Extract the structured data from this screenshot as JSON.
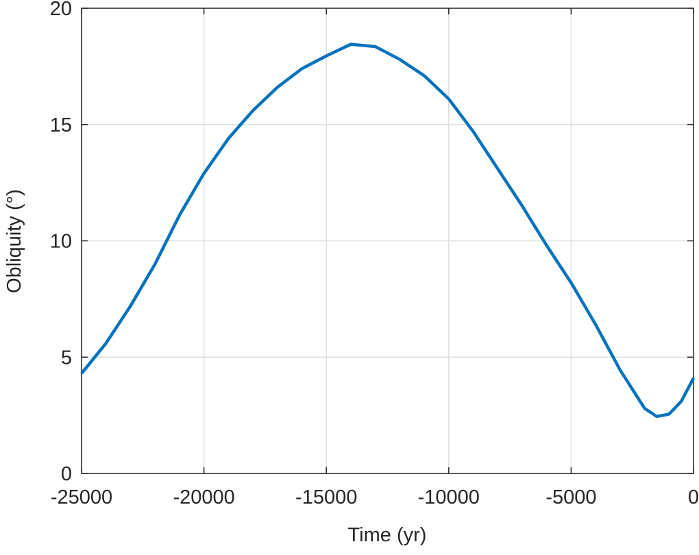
{
  "chart_data": {
    "type": "line",
    "x_label": "Time (yr)",
    "y_label": "Obliquity (°)",
    "x": [
      -25000,
      -24000,
      -23000,
      -22000,
      -21000,
      -20000,
      -19000,
      -18000,
      -17000,
      -16000,
      -15000,
      -14000,
      -13000,
      -12000,
      -11000,
      -10000,
      -9000,
      -8000,
      -7000,
      -6000,
      -5000,
      -4000,
      -3000,
      -2000,
      -1500,
      -1000,
      -500,
      0
    ],
    "series": [
      {
        "name": "Obliquity",
        "color": "#0072bd",
        "values": [
          4.3,
          5.6,
          7.2,
          9.0,
          11.1,
          12.9,
          14.4,
          15.6,
          16.6,
          17.4,
          17.95,
          18.45,
          18.35,
          17.8,
          17.1,
          16.1,
          14.7,
          13.1,
          11.5,
          9.8,
          8.2,
          6.4,
          4.45,
          2.8,
          2.45,
          2.55,
          3.1,
          4.1
        ]
      }
    ],
    "xlim": [
      -25000,
      0
    ],
    "xticks": [
      -25000,
      -20000,
      -15000,
      -10000,
      -5000,
      0
    ],
    "ylim": [
      0,
      20
    ],
    "yticks": [
      0,
      5,
      10,
      15,
      20
    ],
    "grid": true
  }
}
